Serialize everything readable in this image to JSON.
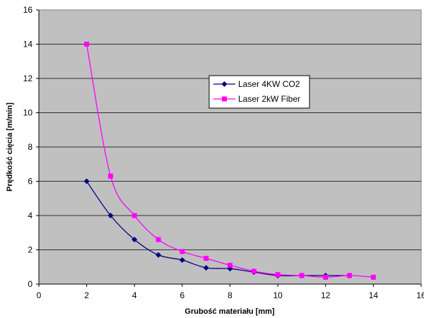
{
  "chart_data": {
    "type": "line",
    "title": "",
    "xlabel": "Grubość materiału [mm]",
    "ylabel": "Prędkość cięcia [m/min]",
    "xlim": [
      0,
      16
    ],
    "ylim": [
      0,
      16
    ],
    "xticks": [
      0,
      2,
      4,
      6,
      8,
      10,
      12,
      14,
      16
    ],
    "yticks": [
      0,
      2,
      4,
      6,
      8,
      10,
      12,
      14,
      16
    ],
    "grid": "horizontal",
    "legend_position": "center-right",
    "plot_background": "#c0c0c0",
    "series": [
      {
        "name": "Laser 4KW CO2",
        "color": "#000080",
        "marker": "diamond",
        "x": [
          2,
          3,
          4,
          5,
          6,
          7,
          8,
          9,
          10,
          11,
          12,
          13
        ],
        "y": [
          6,
          4,
          2.6,
          1.7,
          1.4,
          0.95,
          0.9,
          0.7,
          0.5,
          0.5,
          0.5,
          0.5
        ]
      },
      {
        "name": "Laser 2kW Fiber",
        "color": "#ff00ff",
        "marker": "square",
        "x": [
          2,
          3,
          4,
          5,
          6,
          7,
          8,
          9,
          10,
          11,
          12,
          13,
          14
        ],
        "y": [
          14,
          6.3,
          4,
          2.6,
          1.9,
          1.5,
          1.1,
          0.75,
          0.55,
          0.5,
          0.4,
          0.5,
          0.4
        ]
      }
    ]
  }
}
